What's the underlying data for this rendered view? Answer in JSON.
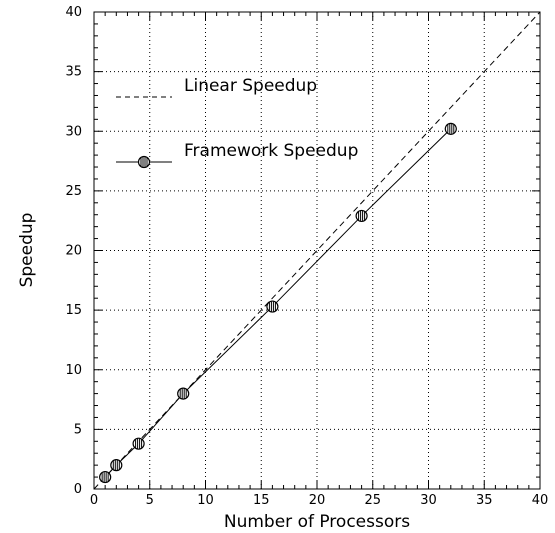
{
  "chart_data": {
    "type": "line",
    "title": "",
    "xlabel": "Number of Processors",
    "ylabel": "Speedup",
    "xlim": [
      0,
      40
    ],
    "ylim": [
      0,
      40
    ],
    "xticks": [
      0,
      5,
      10,
      15,
      20,
      25,
      30,
      35,
      40
    ],
    "yticks": [
      0,
      5,
      10,
      15,
      20,
      25,
      30,
      35,
      40
    ],
    "grid": true,
    "legend_position": "top-left",
    "series": [
      {
        "name": "Linear Speedup",
        "style": "dashed",
        "marker": "none",
        "color": "#000000",
        "x": [
          0,
          40
        ],
        "y": [
          0,
          40
        ]
      },
      {
        "name": "Framework Speedup",
        "style": "solid",
        "marker": "hatched-circle",
        "color": "#000000",
        "x": [
          1,
          2,
          4,
          8,
          16,
          24,
          32
        ],
        "y": [
          1.0,
          2.0,
          3.8,
          8.0,
          15.3,
          22.9,
          30.2
        ]
      }
    ]
  }
}
